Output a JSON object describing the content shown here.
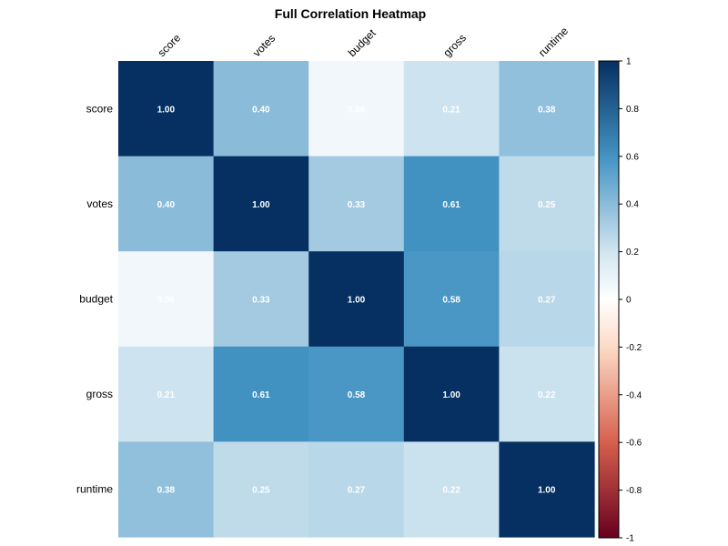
{
  "chart_data": {
    "type": "heatmap",
    "title": "Full Correlation Heatmap",
    "rows": [
      "score",
      "votes",
      "budget",
      "gross",
      "runtime"
    ],
    "columns": [
      "score",
      "votes",
      "budget",
      "gross",
      "runtime"
    ],
    "values": [
      [
        1.0,
        0.4,
        0.06,
        0.21,
        0.38
      ],
      [
        0.4,
        1.0,
        0.33,
        0.61,
        0.25
      ],
      [
        0.06,
        0.33,
        1.0,
        0.58,
        0.27
      ],
      [
        0.21,
        0.61,
        0.58,
        1.0,
        0.22
      ],
      [
        0.38,
        0.25,
        0.27,
        0.22,
        1.0
      ]
    ],
    "value_labels": [
      [
        "1.00",
        "0.40",
        "0.06",
        "0.21",
        "0.38"
      ],
      [
        "0.40",
        "1.00",
        "0.33",
        "0.61",
        "0.25"
      ],
      [
        "0.06",
        "0.33",
        "1.00",
        "0.58",
        "0.27"
      ],
      [
        "0.21",
        "0.61",
        "0.58",
        "1.00",
        "0.22"
      ],
      [
        "0.38",
        "0.25",
        "0.27",
        "0.22",
        "1.00"
      ]
    ],
    "colorbar": {
      "range": [
        -1,
        1
      ],
      "ticks": [
        "1",
        "0.8",
        "0.6",
        "0.4",
        "0.2",
        "0",
        "-0.2",
        "-0.4",
        "-0.6",
        "-0.8",
        "-1"
      ],
      "colors": {
        "neg_strong": "#67001f",
        "neg_mid": "#d6604d",
        "neg_light": "#fddbc7",
        "neutral": "#ffffff",
        "pos_light": "#d1e5f0",
        "pos_mid": "#4393c3",
        "pos_strong": "#053061"
      }
    },
    "grid": false,
    "legend": "right"
  }
}
